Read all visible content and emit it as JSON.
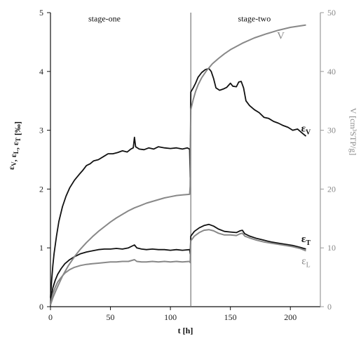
{
  "chart_data": {
    "type": "line",
    "xlabel": "t [h]",
    "ylabel_left_main": "ε",
    "ylabel_left_parts": [
      {
        "main": "ε",
        "sub": "V"
      },
      {
        "main": ", ε",
        "sub": "L"
      },
      {
        "main": ", ε",
        "sub": "T"
      },
      {
        "main": " [‰]",
        "sub": ""
      }
    ],
    "ylabel_right": "V [cm³STP/g]",
    "xlim": [
      0,
      225
    ],
    "ylim_left": [
      0,
      5
    ],
    "ylim_right": [
      0,
      50
    ],
    "x_ticks": [
      "0",
      "50",
      "100",
      "150",
      "200"
    ],
    "x_tick_values": [
      0,
      50,
      100,
      150,
      200
    ],
    "y_left_ticks": [
      "0",
      "1",
      "2",
      "3",
      "4",
      "5"
    ],
    "y_left_tick_values": [
      0,
      1,
      2,
      3,
      4,
      5
    ],
    "y_right_ticks": [
      "0",
      "10",
      "20",
      "30",
      "40",
      "50"
    ],
    "y_right_tick_values": [
      0,
      10,
      20,
      30,
      40,
      50
    ],
    "stage_divider_x": 117,
    "annotations": [
      {
        "text": "stage-one",
        "x": 45,
        "y": 4.9
      },
      {
        "text": "stage-two",
        "x": 170,
        "y": 4.9
      }
    ],
    "series": [
      {
        "name": "εV",
        "label_main": "ε",
        "label_sub": "V",
        "axis": "left",
        "color": "#111111",
        "label_at": [
          213,
          2.98
        ],
        "points": [
          [
            0,
            0.15
          ],
          [
            1,
            0.45
          ],
          [
            2,
            0.7
          ],
          [
            3,
            0.9
          ],
          [
            5,
            1.2
          ],
          [
            7,
            1.45
          ],
          [
            10,
            1.7
          ],
          [
            13,
            1.88
          ],
          [
            16,
            2.02
          ],
          [
            20,
            2.15
          ],
          [
            24,
            2.25
          ],
          [
            27,
            2.32
          ],
          [
            30,
            2.4
          ],
          [
            33,
            2.43
          ],
          [
            36,
            2.48
          ],
          [
            40,
            2.5
          ],
          [
            44,
            2.55
          ],
          [
            48,
            2.6
          ],
          [
            52,
            2.6
          ],
          [
            56,
            2.62
          ],
          [
            60,
            2.65
          ],
          [
            64,
            2.63
          ],
          [
            67,
            2.68
          ],
          [
            69,
            2.7
          ],
          [
            70,
            2.88
          ],
          [
            71,
            2.72
          ],
          [
            74,
            2.68
          ],
          [
            78,
            2.67
          ],
          [
            82,
            2.7
          ],
          [
            86,
            2.68
          ],
          [
            90,
            2.72
          ],
          [
            95,
            2.7
          ],
          [
            100,
            2.69
          ],
          [
            105,
            2.7
          ],
          [
            110,
            2.68
          ],
          [
            114,
            2.7
          ],
          [
            116,
            2.68
          ],
          [
            116.5,
            2.2
          ],
          [
            117,
            3.65
          ],
          [
            119,
            3.72
          ],
          [
            121,
            3.8
          ],
          [
            123,
            3.9
          ],
          [
            126,
            3.98
          ],
          [
            129,
            4.03
          ],
          [
            132,
            4.05
          ],
          [
            134,
            4.0
          ],
          [
            136,
            3.88
          ],
          [
            138,
            3.72
          ],
          [
            141,
            3.68
          ],
          [
            144,
            3.7
          ],
          [
            147,
            3.73
          ],
          [
            150,
            3.8
          ],
          [
            152,
            3.75
          ],
          [
            155,
            3.74
          ],
          [
            157,
            3.82
          ],
          [
            159,
            3.83
          ],
          [
            161,
            3.72
          ],
          [
            163,
            3.5
          ],
          [
            166,
            3.42
          ],
          [
            170,
            3.35
          ],
          [
            174,
            3.3
          ],
          [
            178,
            3.22
          ],
          [
            182,
            3.2
          ],
          [
            186,
            3.15
          ],
          [
            190,
            3.12
          ],
          [
            194,
            3.08
          ],
          [
            198,
            3.05
          ],
          [
            202,
            3.0
          ],
          [
            206,
            3.02
          ],
          [
            210,
            2.95
          ],
          [
            213,
            2.9
          ]
        ]
      },
      {
        "name": "εT",
        "label_main": "ε",
        "label_sub": "T",
        "axis": "left",
        "color": "#111111",
        "label_at": [
          213,
          1.1
        ],
        "points": [
          [
            0,
            0.05
          ],
          [
            1,
            0.2
          ],
          [
            2,
            0.32
          ],
          [
            4,
            0.45
          ],
          [
            6,
            0.55
          ],
          [
            9,
            0.65
          ],
          [
            12,
            0.73
          ],
          [
            16,
            0.8
          ],
          [
            20,
            0.85
          ],
          [
            25,
            0.9
          ],
          [
            30,
            0.93
          ],
          [
            35,
            0.95
          ],
          [
            40,
            0.97
          ],
          [
            45,
            0.98
          ],
          [
            50,
            0.98
          ],
          [
            55,
            0.99
          ],
          [
            60,
            0.98
          ],
          [
            65,
            1.0
          ],
          [
            70,
            1.05
          ],
          [
            72,
            1.0
          ],
          [
            76,
            0.98
          ],
          [
            80,
            0.97
          ],
          [
            85,
            0.98
          ],
          [
            90,
            0.97
          ],
          [
            95,
            0.97
          ],
          [
            100,
            0.96
          ],
          [
            105,
            0.97
          ],
          [
            110,
            0.96
          ],
          [
            116,
            0.97
          ],
          [
            116.5,
            0.9
          ],
          [
            117,
            1.2
          ],
          [
            120,
            1.28
          ],
          [
            124,
            1.34
          ],
          [
            128,
            1.38
          ],
          [
            132,
            1.4
          ],
          [
            136,
            1.37
          ],
          [
            140,
            1.32
          ],
          [
            145,
            1.28
          ],
          [
            150,
            1.27
          ],
          [
            155,
            1.26
          ],
          [
            158,
            1.29
          ],
          [
            160,
            1.3
          ],
          [
            162,
            1.24
          ],
          [
            166,
            1.2
          ],
          [
            172,
            1.16
          ],
          [
            178,
            1.13
          ],
          [
            184,
            1.1
          ],
          [
            190,
            1.08
          ],
          [
            196,
            1.06
          ],
          [
            202,
            1.04
          ],
          [
            208,
            1.01
          ],
          [
            213,
            0.98
          ]
        ]
      },
      {
        "name": "εL",
        "label_main": "ε",
        "label_sub": "L",
        "axis": "left",
        "color": "#888888",
        "label_at": [
          213,
          0.72
        ],
        "points": [
          [
            0,
            0.03
          ],
          [
            1,
            0.12
          ],
          [
            2,
            0.22
          ],
          [
            4,
            0.33
          ],
          [
            6,
            0.42
          ],
          [
            9,
            0.5
          ],
          [
            12,
            0.57
          ],
          [
            16,
            0.63
          ],
          [
            20,
            0.67
          ],
          [
            25,
            0.7
          ],
          [
            30,
            0.72
          ],
          [
            35,
            0.73
          ],
          [
            40,
            0.74
          ],
          [
            45,
            0.75
          ],
          [
            50,
            0.76
          ],
          [
            55,
            0.76
          ],
          [
            60,
            0.77
          ],
          [
            65,
            0.77
          ],
          [
            70,
            0.8
          ],
          [
            72,
            0.77
          ],
          [
            76,
            0.76
          ],
          [
            80,
            0.76
          ],
          [
            85,
            0.77
          ],
          [
            90,
            0.76
          ],
          [
            95,
            0.77
          ],
          [
            100,
            0.76
          ],
          [
            105,
            0.77
          ],
          [
            110,
            0.76
          ],
          [
            116,
            0.77
          ],
          [
            116.5,
            0.75
          ],
          [
            117,
            1.12
          ],
          [
            120,
            1.2
          ],
          [
            124,
            1.26
          ],
          [
            128,
            1.3
          ],
          [
            132,
            1.31
          ],
          [
            136,
            1.29
          ],
          [
            140,
            1.25
          ],
          [
            145,
            1.22
          ],
          [
            150,
            1.22
          ],
          [
            155,
            1.21
          ],
          [
            158,
            1.24
          ],
          [
            160,
            1.25
          ],
          [
            162,
            1.2
          ],
          [
            166,
            1.17
          ],
          [
            172,
            1.13
          ],
          [
            178,
            1.1
          ],
          [
            184,
            1.08
          ],
          [
            190,
            1.06
          ],
          [
            196,
            1.04
          ],
          [
            202,
            1.02
          ],
          [
            208,
            0.99
          ],
          [
            213,
            0.95
          ]
        ]
      },
      {
        "name": "V",
        "label_main": "V",
        "label_sub": "",
        "axis": "right",
        "color": "#888888",
        "label_at": [
          192,
          45.5
        ],
        "points": [
          [
            0,
            0.3
          ],
          [
            2,
            1.5
          ],
          [
            5,
            3
          ],
          [
            10,
            5.2
          ],
          [
            15,
            7
          ],
          [
            20,
            8.5
          ],
          [
            25,
            9.8
          ],
          [
            30,
            10.9
          ],
          [
            35,
            11.9
          ],
          [
            40,
            12.8
          ],
          [
            45,
            13.6
          ],
          [
            50,
            14.4
          ],
          [
            55,
            15.1
          ],
          [
            60,
            15.7
          ],
          [
            65,
            16.3
          ],
          [
            70,
            16.8
          ],
          [
            75,
            17.2
          ],
          [
            80,
            17.6
          ],
          [
            85,
            17.9
          ],
          [
            90,
            18.2
          ],
          [
            95,
            18.5
          ],
          [
            100,
            18.7
          ],
          [
            105,
            18.9
          ],
          [
            110,
            19.0
          ],
          [
            116,
            19.1
          ],
          [
            116.5,
            20.5
          ],
          [
            117,
            33.5
          ],
          [
            119,
            35.2
          ],
          [
            121,
            36.6
          ],
          [
            123,
            37.7
          ],
          [
            126,
            38.9
          ],
          [
            130,
            40.1
          ],
          [
            135,
            41.3
          ],
          [
            140,
            42.2
          ],
          [
            145,
            43.0
          ],
          [
            150,
            43.7
          ],
          [
            160,
            44.8
          ],
          [
            170,
            45.7
          ],
          [
            180,
            46.4
          ],
          [
            190,
            47.0
          ],
          [
            200,
            47.5
          ],
          [
            213,
            47.9
          ]
        ]
      }
    ]
  }
}
